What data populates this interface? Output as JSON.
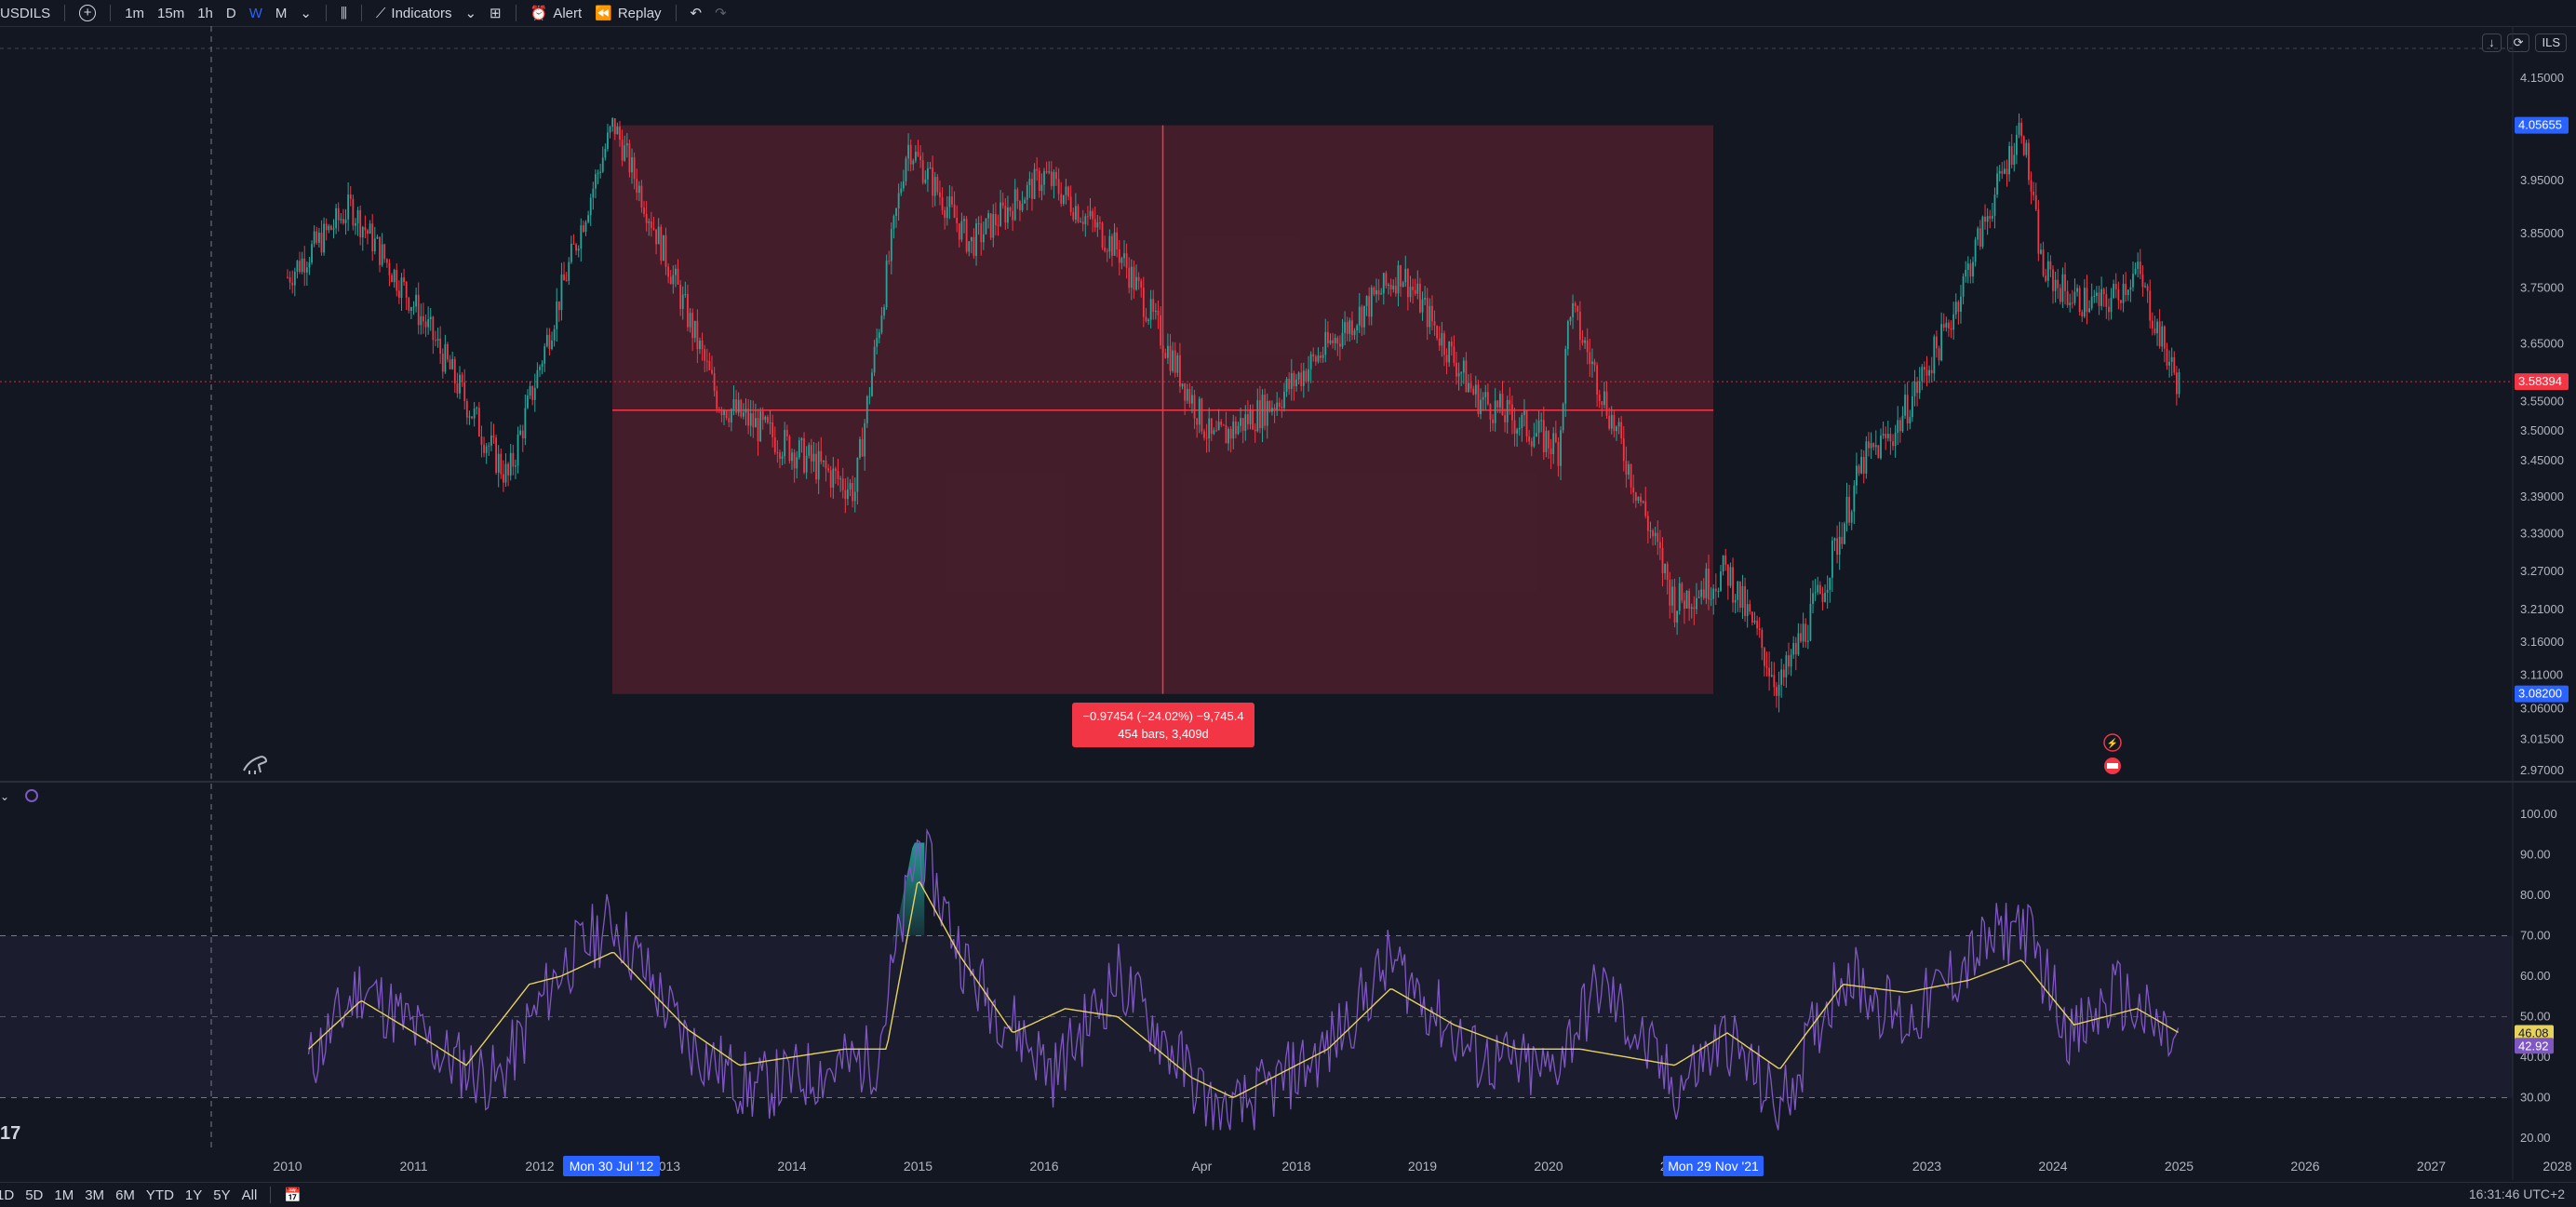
{
  "toolbar": {
    "symbol": "USDILS",
    "add_icon": "plus-circle-icon",
    "intervals": [
      "1m",
      "15m",
      "1h",
      "D",
      "W",
      "M"
    ],
    "active_interval": "W",
    "indicators_label": "Indicators",
    "alert_label": "Alert",
    "replay_label": "Replay"
  },
  "price_scale": {
    "currency": "ILS",
    "labels": [
      "4.15000",
      "3.95000",
      "3.85000",
      "3.75000",
      "3.65000",
      "3.55000",
      "3.50000",
      "3.45000",
      "3.39000",
      "3.33000",
      "3.27000",
      "3.21000",
      "3.16000",
      "3.11000",
      "3.06000",
      "3.01500",
      "2.97000"
    ],
    "high_tag": "4.05655",
    "current_tag": "3.58394",
    "low_tag": "3.08200",
    "colors": {
      "high": "#2962ff",
      "current": "#f23645",
      "low": "#2962ff"
    }
  },
  "measurement": {
    "line1": "−0.97454 (−24.02%) −9,745.4",
    "line2": "454 bars, 3,409d",
    "color": "#f23645"
  },
  "rsi_scale": {
    "labels": [
      "100.00",
      "90.00",
      "80.00",
      "70.00",
      "60.00",
      "50.00",
      "40.00",
      "30.00",
      "20.00"
    ],
    "ma_value": "46.08",
    "rsi_value": "42.92",
    "colors": {
      "rsi": "#7e57c2",
      "ma": "#e6d35f"
    }
  },
  "time_axis": {
    "labels": [
      "2010",
      "2011",
      "2012",
      "2013",
      "2014",
      "2015",
      "2016",
      "Apr",
      "2018",
      "2019",
      "2020",
      "2021",
      "2023",
      "2024",
      "2025",
      "2026",
      "2027",
      "2028"
    ],
    "range_start": "Mon 30 Jul '12",
    "range_end": "Mon 29 Nov '21"
  },
  "bottom": {
    "ranges": [
      "1D",
      "5D",
      "1M",
      "3M",
      "6M",
      "YTD",
      "1Y",
      "5Y",
      "All"
    ],
    "time": "16:31:46 UTC+2",
    "watermark": "17"
  },
  "chart_data": {
    "type": "candlestick",
    "symbol": "USDILS",
    "interval": "W",
    "x_range": [
      "2010",
      "2025"
    ],
    "ylim": [
      2.97,
      4.15
    ],
    "price_anchors": {
      "x": [
        "2010-01",
        "2010-07",
        "2011-02",
        "2011-08",
        "2011-10",
        "2012-08",
        "2013-06",
        "2014-07",
        "2014-12",
        "2015-06",
        "2016-01",
        "2016-08",
        "2017-05",
        "2017-11",
        "2018-11",
        "2019-06",
        "2020-02",
        "2020-03",
        "2021-01",
        "2021-06",
        "2021-11",
        "2022-03",
        "2022-07",
        "2022-10",
        "2023-03",
        "2023-10",
        "2023-12",
        "2024-03",
        "2024-06",
        "2024-09",
        "2024-12",
        "2025-01"
      ],
      "y": [
        3.77,
        3.9,
        3.69,
        3.48,
        3.42,
        4.06,
        3.55,
        3.4,
        4.02,
        3.83,
        3.96,
        3.82,
        3.48,
        3.55,
        3.78,
        3.56,
        3.47,
        3.72,
        3.22,
        3.27,
        3.09,
        3.24,
        3.45,
        3.5,
        3.68,
        4.06,
        3.78,
        3.73,
        3.72,
        3.78,
        3.62,
        3.58
      ]
    },
    "horizontal_lines": {
      "current_price": 3.58394
    },
    "measure_box": {
      "from": "Mon 30 Jul '12",
      "to": "Mon 29 Nov '21",
      "high": 4.05655,
      "low": 3.082
    },
    "rsi": {
      "ylim": [
        20,
        100
      ],
      "overbought": 70,
      "oversold": 30,
      "midline": 50,
      "rsi_anchors": {
        "x": [
          "2010-03",
          "2010-08",
          "2011-04",
          "2011-09",
          "2012-03",
          "2012-08",
          "2013-03",
          "2013-09",
          "2014-09",
          "2015-01",
          "2015-06",
          "2016-02",
          "2016-08",
          "2017-03",
          "2017-06",
          "2018-04",
          "2018-10",
          "2019-06",
          "2020-01",
          "2020-06",
          "2021-01",
          "2021-06",
          "2021-11",
          "2022-05",
          "2022-11",
          "2023-05",
          "2023-10",
          "2024-03",
          "2024-07",
          "2025-01"
        ],
        "y": [
          38,
          58,
          40,
          34,
          62,
          74,
          44,
          32,
          40,
          93,
          60,
          36,
          60,
          35,
          24,
          42,
          64,
          40,
          36,
          58,
          32,
          45,
          27,
          62,
          48,
          64,
          74,
          44,
          56,
          42
        ]
      },
      "ma_anchors": {
        "x": [
          "2010-03",
          "2010-08",
          "2011-03",
          "2011-06",
          "2011-12",
          "2012-03",
          "2012-08",
          "2013-03",
          "2013-08",
          "2014-06",
          "2014-10",
          "2015-01",
          "2015-05",
          "2015-10",
          "2016-03",
          "2016-08",
          "2017-03",
          "2017-07",
          "2018-04",
          "2018-10",
          "2019-04",
          "2019-10",
          "2020-04",
          "2021-01",
          "2021-06",
          "2021-11",
          "2022-05",
          "2022-11",
          "2023-05",
          "2023-10",
          "2024-03",
          "2024-09",
          "2025-01"
        ],
        "y": [
          42,
          54,
          43,
          38,
          58,
          60,
          66,
          47,
          38,
          42,
          42,
          84,
          65,
          46,
          52,
          50,
          35,
          30,
          42,
          57,
          48,
          42,
          42,
          38,
          46,
          37,
          58,
          56,
          59,
          64,
          48,
          52,
          46
        ]
      }
    }
  }
}
